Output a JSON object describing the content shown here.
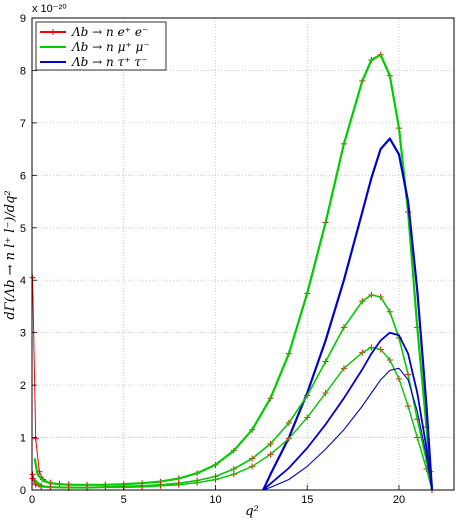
{
  "chart_data": {
    "type": "line",
    "title": "",
    "xlabel": "q²",
    "ylabel": "dΓ(Λb → n l⁺ l⁻)/dq²",
    "scale_label": "x 10⁻²⁰",
    "xlim": [
      0,
      23
    ],
    "ylim": [
      0,
      9
    ],
    "x_ticks": [
      "0",
      "5",
      "10",
      "15",
      "20"
    ],
    "y_ticks": [
      "0",
      "1",
      "2",
      "3",
      "4",
      "5",
      "6",
      "7",
      "8",
      "9"
    ],
    "grid": "on",
    "legend_position": "top-left",
    "legend": [
      {
        "label": "Λb → n e⁺ e⁻",
        "color": "#ff0000",
        "marker": "+"
      },
      {
        "label": "Λb → n μ⁺ μ⁻",
        "color": "#00cc00",
        "marker": ""
      },
      {
        "label": "Λb → n τ⁺ τ⁻",
        "color": "#0000cc",
        "marker": ""
      }
    ],
    "series": [
      {
        "color": "#ff0000",
        "marker": "+",
        "width": 1,
        "x": [
          0.03,
          0.2,
          0.4,
          0.6,
          1.0,
          1.5,
          2,
          3,
          4,
          5,
          6,
          7,
          8,
          9,
          10,
          11,
          12,
          13,
          14,
          15,
          16,
          17,
          18,
          18.5,
          19,
          19.5,
          20,
          20.5,
          21,
          21.5,
          21.7,
          21.8
        ],
        "y": [
          4.05,
          0.98,
          0.35,
          0.2,
          0.14,
          0.12,
          0.11,
          0.1,
          0.1,
          0.11,
          0.13,
          0.16,
          0.22,
          0.32,
          0.48,
          0.75,
          1.15,
          1.75,
          2.6,
          3.75,
          5.1,
          6.6,
          7.8,
          8.2,
          8.3,
          7.9,
          6.9,
          5.3,
          3.1,
          1.2,
          0.35,
          0.0
        ]
      },
      {
        "color": "#00cc00",
        "marker": "",
        "width": 2.2,
        "x": [
          0.15,
          0.3,
          0.6,
          1.0,
          1.5,
          2,
          3,
          4,
          5,
          6,
          7,
          8,
          9,
          10,
          11,
          12,
          13,
          14,
          15,
          16,
          17,
          18,
          18.5,
          19,
          19.5,
          20,
          20.5,
          21,
          21.5,
          21.7,
          21.8
        ],
        "y": [
          0.6,
          0.3,
          0.18,
          0.13,
          0.11,
          0.1,
          0.1,
          0.1,
          0.11,
          0.13,
          0.16,
          0.22,
          0.32,
          0.48,
          0.75,
          1.15,
          1.75,
          2.6,
          3.75,
          5.1,
          6.6,
          7.8,
          8.2,
          8.3,
          7.9,
          6.9,
          5.3,
          3.1,
          1.2,
          0.35,
          0.0
        ]
      },
      {
        "color": "#0000cc",
        "marker": "",
        "width": 2.2,
        "x": [
          12.6,
          13,
          14,
          15,
          16,
          17,
          18,
          18.5,
          19,
          19.5,
          20,
          20.5,
          21,
          21.5,
          21.8
        ],
        "y": [
          0.0,
          0.3,
          1.0,
          1.85,
          2.85,
          4.0,
          5.3,
          5.95,
          6.5,
          6.7,
          6.4,
          5.5,
          3.8,
          1.6,
          0.0
        ]
      },
      {
        "color": "#ff0000",
        "marker": "+",
        "width": 1,
        "x": [
          0.03,
          0.2,
          0.5,
          1,
          2,
          3,
          4,
          5,
          6,
          7,
          8,
          9,
          10,
          11,
          12,
          13,
          14,
          15,
          16,
          17,
          18,
          18.5,
          19,
          19.5,
          20,
          20.5,
          21,
          21.5,
          21.8
        ],
        "y": [
          0.3,
          0.13,
          0.08,
          0.06,
          0.05,
          0.05,
          0.06,
          0.07,
          0.08,
          0.1,
          0.13,
          0.18,
          0.26,
          0.4,
          0.6,
          0.88,
          1.28,
          1.8,
          2.45,
          3.1,
          3.6,
          3.72,
          3.68,
          3.4,
          2.9,
          2.2,
          1.35,
          0.55,
          0.0
        ]
      },
      {
        "color": "#00cc00",
        "marker": "",
        "width": 1.6,
        "x": [
          0.15,
          0.5,
          1,
          2,
          3,
          4,
          5,
          6,
          7,
          8,
          9,
          10,
          11,
          12,
          13,
          14,
          15,
          16,
          17,
          18,
          18.5,
          19,
          19.5,
          20,
          20.5,
          21,
          21.5,
          21.8
        ],
        "y": [
          0.2,
          0.08,
          0.06,
          0.05,
          0.05,
          0.06,
          0.07,
          0.08,
          0.1,
          0.13,
          0.18,
          0.26,
          0.4,
          0.6,
          0.88,
          1.28,
          1.8,
          2.45,
          3.1,
          3.6,
          3.72,
          3.68,
          3.4,
          2.9,
          2.2,
          1.35,
          0.55,
          0.0
        ]
      },
      {
        "color": "#ff0000",
        "marker": "+",
        "width": 1,
        "x": [
          0.03,
          0.2,
          0.5,
          1,
          2,
          3,
          4,
          5,
          6,
          7,
          8,
          9,
          10,
          11,
          12,
          13,
          14,
          15,
          16,
          17,
          18,
          18.5,
          19,
          19.5,
          20,
          20.5,
          21,
          21.5,
          21.8
        ],
        "y": [
          0.22,
          0.1,
          0.06,
          0.05,
          0.04,
          0.04,
          0.05,
          0.05,
          0.06,
          0.08,
          0.1,
          0.14,
          0.2,
          0.3,
          0.45,
          0.68,
          0.98,
          1.38,
          1.85,
          2.32,
          2.62,
          2.72,
          2.68,
          2.48,
          2.12,
          1.6,
          1.0,
          0.4,
          0.0
        ]
      },
      {
        "color": "#00cc00",
        "marker": "",
        "width": 1.4,
        "x": [
          0.15,
          0.5,
          1,
          2,
          3,
          4,
          5,
          6,
          7,
          8,
          9,
          10,
          11,
          12,
          13,
          14,
          15,
          16,
          17,
          18,
          18.5,
          19,
          19.5,
          20,
          20.5,
          21,
          21.5,
          21.8
        ],
        "y": [
          0.15,
          0.06,
          0.05,
          0.04,
          0.04,
          0.05,
          0.05,
          0.06,
          0.08,
          0.1,
          0.14,
          0.2,
          0.3,
          0.45,
          0.68,
          0.98,
          1.38,
          1.85,
          2.32,
          2.62,
          2.72,
          2.68,
          2.48,
          2.12,
          1.6,
          1.0,
          0.4,
          0.0
        ]
      },
      {
        "color": "#0000cc",
        "marker": "",
        "width": 1.8,
        "x": [
          12.6,
          13,
          14,
          15,
          16,
          17,
          18,
          18.5,
          19,
          19.5,
          20,
          20.5,
          21,
          21.5,
          21.8
        ],
        "y": [
          0.0,
          0.12,
          0.42,
          0.8,
          1.25,
          1.75,
          2.3,
          2.6,
          2.85,
          3.0,
          2.95,
          2.6,
          1.85,
          0.8,
          0.0
        ]
      },
      {
        "color": "#0000cc",
        "marker": "",
        "width": 1.1,
        "x": [
          12.6,
          13,
          14,
          15,
          16,
          17,
          18,
          18.5,
          19,
          19.5,
          20,
          20.5,
          21,
          21.5,
          21.8
        ],
        "y": [
          0.0,
          0.05,
          0.2,
          0.45,
          0.78,
          1.15,
          1.6,
          1.85,
          2.1,
          2.28,
          2.32,
          2.1,
          1.5,
          0.65,
          0.0
        ]
      }
    ]
  }
}
